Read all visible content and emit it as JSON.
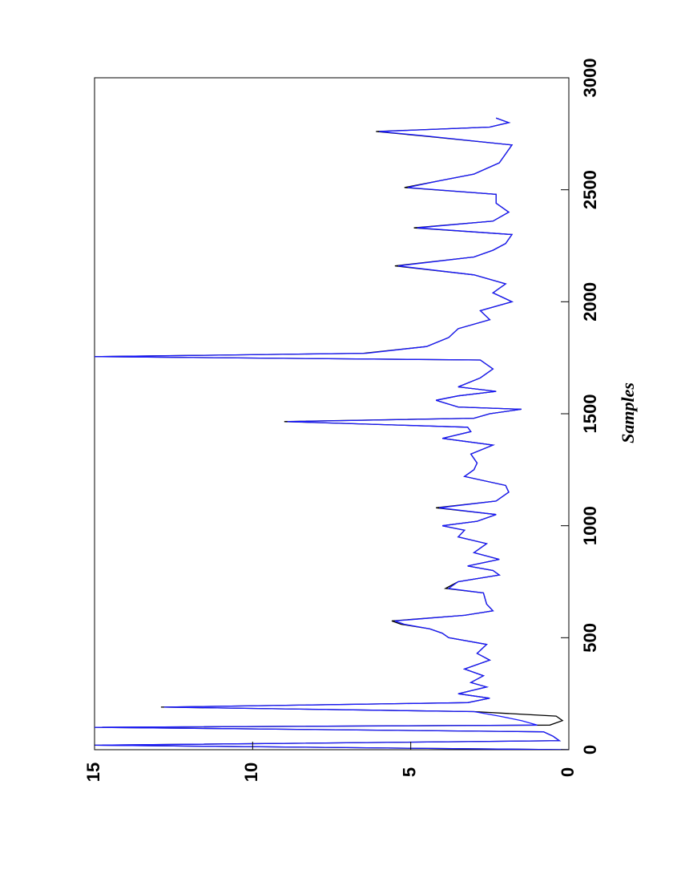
{
  "chart_data": {
    "type": "line",
    "orientation": "rotated",
    "x_label": "Samples",
    "x": [
      0,
      20,
      40,
      60,
      80,
      100,
      110,
      130,
      150,
      170,
      190,
      210,
      230,
      250,
      280,
      300,
      330,
      360,
      400,
      430,
      470,
      500,
      520,
      540,
      560,
      575,
      600,
      620,
      650,
      700,
      720,
      750,
      780,
      800,
      820,
      850,
      880,
      920,
      950,
      980,
      1000,
      1020,
      1050,
      1080,
      1110,
      1150,
      1180,
      1220,
      1250,
      1280,
      1320,
      1360,
      1390,
      1420,
      1440,
      1465,
      1480,
      1500,
      1520,
      1530,
      1560,
      1580,
      1600,
      1620,
      1660,
      1700,
      1740,
      1755,
      1770,
      1800,
      1840,
      1880,
      1920,
      1960,
      2000,
      2040,
      2080,
      2120,
      2160,
      2200,
      2230,
      2260,
      2300,
      2330,
      2360,
      2400,
      2440,
      2480,
      2510,
      2540,
      2570,
      2620,
      2660,
      2700,
      2740,
      2760,
      2780,
      2800,
      2820
    ],
    "series": [
      {
        "color": "#000000",
        "values": [
          0,
          15,
          0.3,
          0.5,
          0.8,
          15,
          0.6,
          0.2,
          0.4,
          3,
          12.9,
          3.2,
          2.5,
          3.5,
          2.6,
          3.1,
          2.7,
          3.3,
          2.5,
          2.9,
          2.6,
          3.8,
          4.0,
          4.4,
          5.3,
          5.6,
          3.3,
          2.4,
          2.6,
          2.7,
          3.9,
          3.5,
          2.2,
          2.4,
          3.2,
          2.2,
          3.0,
          2.6,
          3.5,
          3.3,
          4.0,
          2.9,
          2.3,
          4.2,
          2.3,
          1.9,
          2.0,
          3.3,
          3.0,
          2.9,
          3.1,
          2.4,
          4.0,
          3.1,
          3.2,
          9.0,
          3.0,
          2.5,
          1.5,
          3.5,
          4.2,
          3.5,
          2.3,
          3.5,
          2.8,
          2.4,
          2.8,
          15,
          6.5,
          4.5,
          3.8,
          3.5,
          2.5,
          2.8,
          1.8,
          2.4,
          2.0,
          3.0,
          5.5,
          3.0,
          2.4,
          2.0,
          1.8,
          4.9,
          2.4,
          1.9,
          2.3,
          2.3,
          5.2,
          4.1,
          3.0,
          2.2,
          2.0,
          1.8,
          4.6,
          6.1,
          2.5,
          1.9,
          2.3
        ]
      },
      {
        "color": "#1a1aff",
        "values": [
          0,
          15,
          0.3,
          0.5,
          0.8,
          15,
          1.0,
          1.5,
          2.2,
          3,
          12.8,
          3.2,
          2.5,
          3.5,
          2.6,
          3.1,
          2.7,
          3.3,
          2.5,
          2.9,
          2.6,
          3.8,
          4.0,
          4.4,
          5.2,
          5.5,
          3.3,
          2.4,
          2.6,
          2.7,
          3.8,
          3.5,
          2.2,
          2.4,
          3.2,
          2.2,
          3.0,
          2.6,
          3.5,
          3.3,
          4.0,
          2.9,
          2.3,
          4.1,
          2.3,
          1.9,
          2.0,
          3.3,
          3.0,
          2.9,
          3.1,
          2.4,
          4.0,
          3.1,
          3.2,
          8.9,
          3.0,
          2.5,
          1.5,
          3.5,
          4.2,
          3.5,
          2.3,
          3.5,
          2.8,
          2.4,
          2.8,
          15,
          6.4,
          4.5,
          3.8,
          3.5,
          2.5,
          2.8,
          1.8,
          2.4,
          2.0,
          3.0,
          5.4,
          3.0,
          2.4,
          2.0,
          1.8,
          4.8,
          2.4,
          1.9,
          2.3,
          2.3,
          5.1,
          4.1,
          3.0,
          2.2,
          2.0,
          1.8,
          4.5,
          6.0,
          2.5,
          1.9,
          2.3
        ]
      }
    ],
    "xlim": [
      0,
      3000
    ],
    "xticks": [
      0,
      500,
      1000,
      1500,
      2000,
      2500,
      3000
    ],
    "ylim": [
      0,
      15
    ],
    "yticks": [
      0,
      5,
      10,
      15
    ]
  }
}
